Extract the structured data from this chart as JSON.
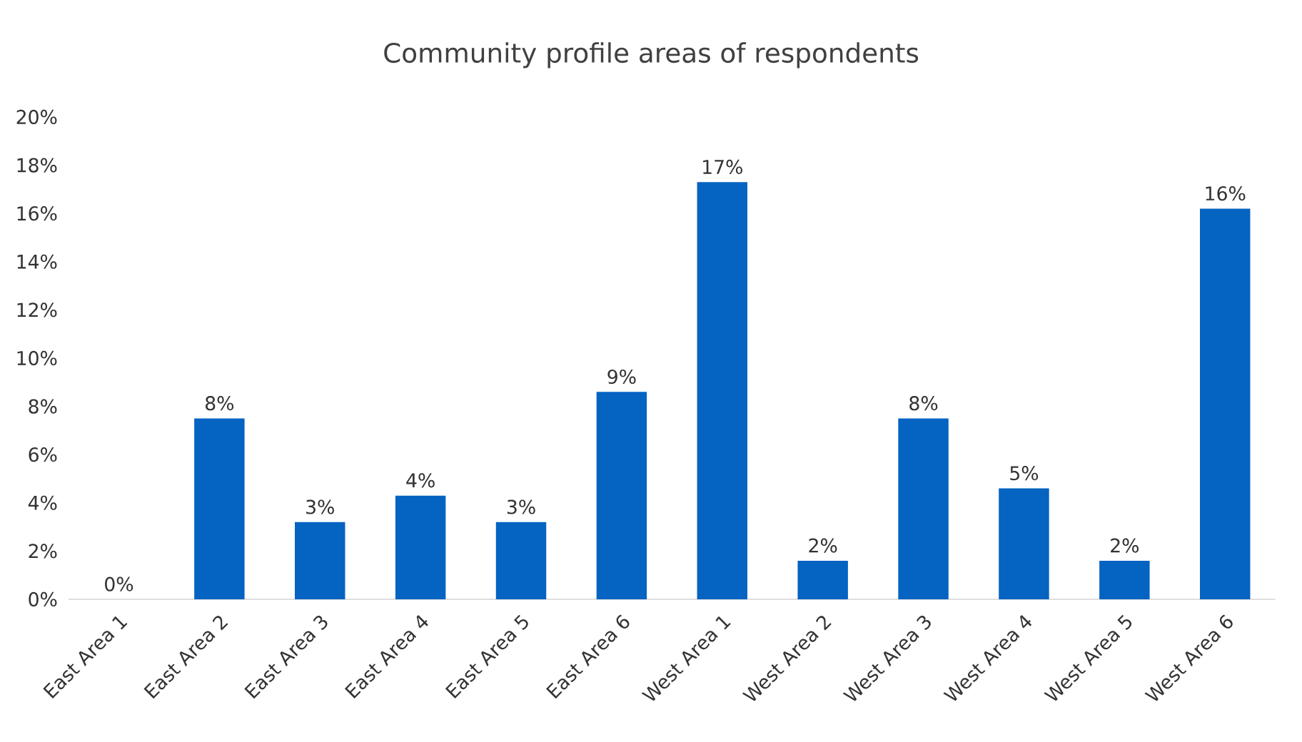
{
  "chart_data": {
    "type": "bar",
    "title": "Community profile areas of respondents",
    "categories": [
      "East Area 1",
      "East Area 2",
      "East Area 3",
      "East Area 4",
      "East Area 5",
      "East Area 6",
      "West Area 1",
      "West Area 2",
      "West Area 3",
      "West Area 4",
      "West Area 5",
      "West Area 6"
    ],
    "values": [
      0,
      7.5,
      3.2,
      4.3,
      3.2,
      8.6,
      17.3,
      1.6,
      7.5,
      4.6,
      1.6,
      16.2
    ],
    "value_labels": [
      "0%",
      "8%",
      "3%",
      "4%",
      "3%",
      "9%",
      "17%",
      "2%",
      "8%",
      "5%",
      "2%",
      "16%"
    ],
    "color": "#0563c1",
    "ylim": [
      0,
      20
    ],
    "yticks": [
      {
        "value": 0,
        "label": "0%"
      },
      {
        "value": 2,
        "label": "2%"
      },
      {
        "value": 4,
        "label": "4%"
      },
      {
        "value": 6,
        "label": "6%"
      },
      {
        "value": 8,
        "label": "8%"
      },
      {
        "value": 10,
        "label": "10%"
      },
      {
        "value": 12,
        "label": "12%"
      },
      {
        "value": 14,
        "label": "14%"
      },
      {
        "value": 16,
        "label": "16%"
      },
      {
        "value": 18,
        "label": "18%"
      },
      {
        "value": 20,
        "label": "20%"
      }
    ],
    "grid": false
  }
}
